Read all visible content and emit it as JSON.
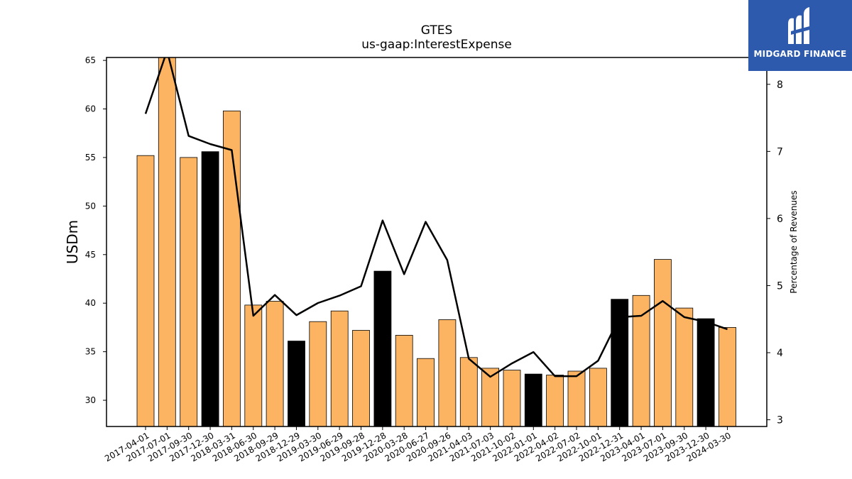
{
  "chart_data": {
    "type": "bar",
    "title": "GTES",
    "subtitle": "us-gaap:InterestExpense",
    "ylabel": "USDm",
    "ylabel_right": "Percentage of Revenues",
    "ylim": [
      27.3,
      65.3
    ],
    "ylim_right": [
      2.9,
      8.4
    ],
    "yticks": [
      30,
      35,
      40,
      45,
      50,
      55,
      60,
      65
    ],
    "yticks_right": [
      3,
      4,
      5,
      6,
      7,
      8
    ],
    "categories": [
      "2017-04-01",
      "2017-07-01",
      "2017-09-30",
      "2017-12-30",
      "2018-03-31",
      "2018-06-30",
      "2018-09-29",
      "2018-12-29",
      "2019-03-30",
      "2019-06-29",
      "2019-09-28",
      "2019-12-28",
      "2020-03-28",
      "2020-06-27",
      "2020-09-26",
      "2021-04-03",
      "2021-07-03",
      "2021-10-02",
      "2022-01-01",
      "2022-04-02",
      "2022-07-02",
      "2022-10-01",
      "2022-12-31",
      "2023-04-01",
      "2023-07-01",
      "2023-09-30",
      "2023-12-30",
      "2024-03-30"
    ],
    "series": [
      {
        "type": "bar",
        "values": [
          55.2,
          65.5,
          55.0,
          55.6,
          59.8,
          39.8,
          40.2,
          36.1,
          38.1,
          39.2,
          37.2,
          43.3,
          36.7,
          34.3,
          38.3,
          34.4,
          33.3,
          33.1,
          32.7,
          32.6,
          33.0,
          33.3,
          40.4,
          40.8,
          44.5,
          39.5,
          38.4,
          37.5
        ],
        "highlighted": [
          false,
          false,
          false,
          true,
          false,
          false,
          false,
          true,
          false,
          false,
          false,
          true,
          false,
          false,
          false,
          false,
          false,
          false,
          true,
          false,
          false,
          false,
          true,
          false,
          false,
          false,
          true,
          false
        ],
        "color": "#fdb462",
        "highlight_color": "#000000"
      },
      {
        "type": "line",
        "axis": "right",
        "values": [
          7.56,
          8.5,
          7.23,
          7.11,
          7.02,
          4.55,
          4.86,
          4.56,
          4.74,
          4.85,
          4.99,
          5.97,
          5.17,
          5.95,
          5.38,
          3.91,
          3.64,
          3.84,
          4.01,
          3.65,
          3.65,
          3.88,
          4.53,
          4.55,
          4.77,
          4.53,
          4.46,
          4.35
        ],
        "color": "#000000"
      }
    ]
  },
  "logo": {
    "text": "MIDGARD FINANCE",
    "background": "#2d5aac"
  }
}
